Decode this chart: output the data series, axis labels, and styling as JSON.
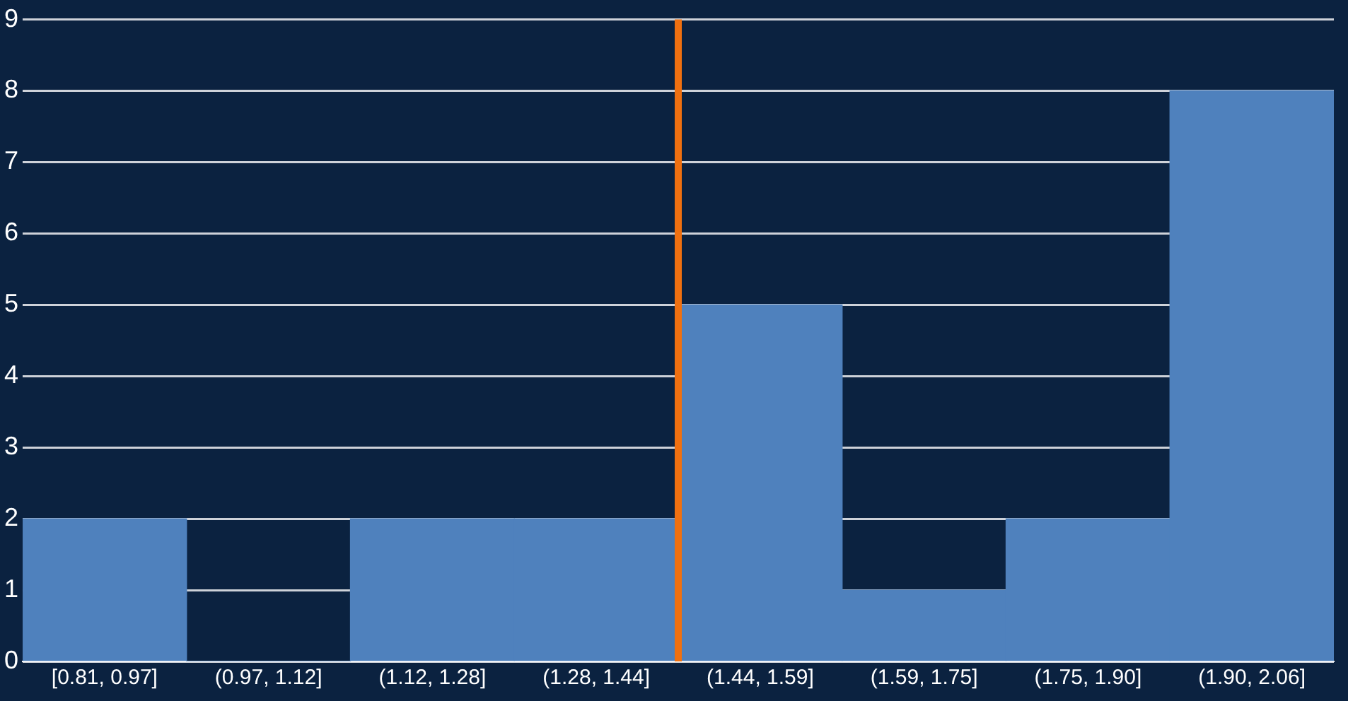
{
  "chart_data": {
    "type": "bar",
    "categories": [
      "[0.81, 0.97]",
      "(0.97, 1.12]",
      "(1.12, 1.28]",
      "(1.28, 1.44]",
      "(1.44, 1.59]",
      "(1.59, 1.75]",
      "(1.75, 1.90]",
      "(1.90, 2.06]"
    ],
    "values": [
      2,
      0,
      2,
      2,
      5,
      1,
      2,
      8
    ],
    "color": "#4f81bd",
    "ylim": [
      0,
      9
    ],
    "yticks": [
      0,
      1,
      2,
      3,
      4,
      5,
      6,
      7,
      8,
      9
    ],
    "grid": "y",
    "ref_lines": [
      {
        "axis": "x",
        "value": "(1.28, 1.44]",
        "color": "#f07010"
      }
    ]
  }
}
